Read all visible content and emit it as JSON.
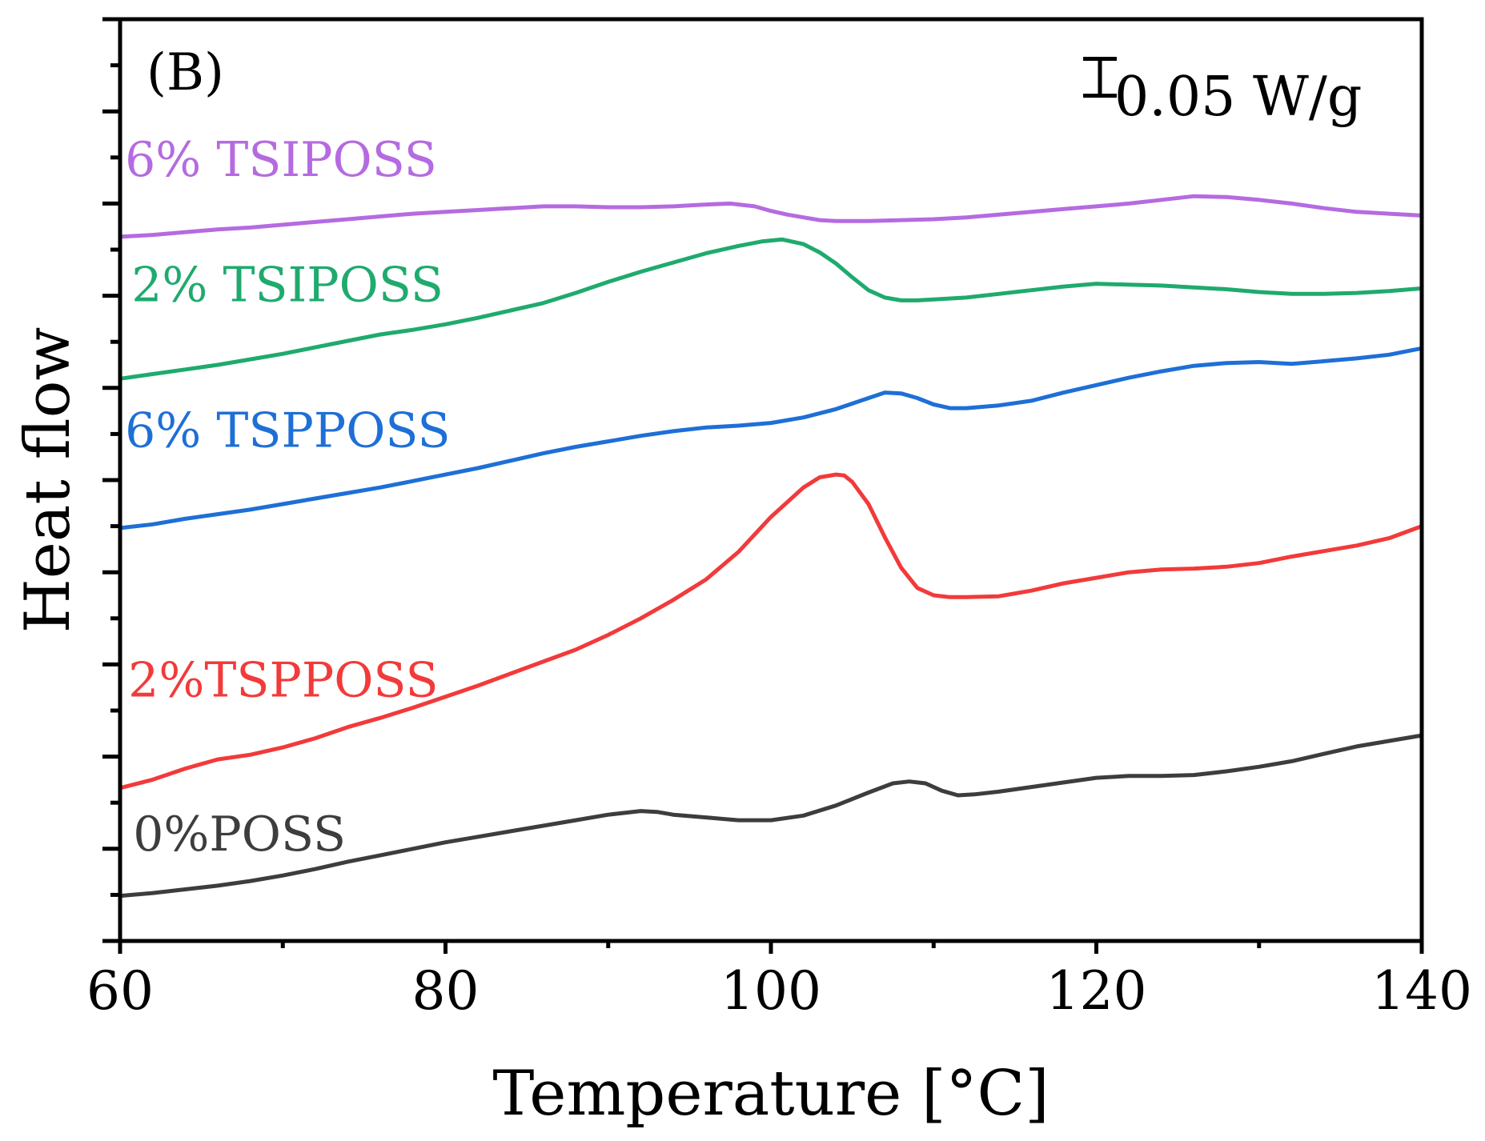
{
  "chart_data": {
    "type": "line",
    "panel_label": "(B)",
    "title": "",
    "xlabel": "Temperature [°C]",
    "ylabel": "Heat flow",
    "xlim": [
      60,
      140
    ],
    "ylim": [
      0,
      10
    ],
    "x_ticks": [
      60,
      80,
      100,
      120,
      140
    ],
    "x_tick_labels": [
      "60",
      "80",
      "100",
      "120",
      "140"
    ],
    "x_minor_step": 10,
    "y_tick_step": 1,
    "y_minor_step": 0.5,
    "y_tick_labels_shown": false,
    "scale_bar": {
      "label": "0.05 W/g",
      "size_y": 0.4
    },
    "series": [
      {
        "name": "6% TSIPOSS",
        "color": "#b56be0",
        "label_pos": [
          60.3,
          8.3
        ],
        "x": [
          60,
          62,
          64,
          66,
          68,
          70,
          72,
          74,
          76,
          78,
          80,
          82,
          84,
          86,
          88,
          90,
          92,
          94,
          96,
          97.5,
          99,
          100,
          101,
          102,
          103,
          104,
          106,
          108,
          110,
          112,
          114,
          116,
          118,
          120,
          122,
          124,
          126,
          128,
          130,
          132,
          134,
          136,
          138,
          140
        ],
        "y": [
          7.64,
          7.66,
          7.69,
          7.72,
          7.74,
          7.77,
          7.8,
          7.83,
          7.86,
          7.89,
          7.91,
          7.93,
          7.95,
          7.97,
          7.97,
          7.96,
          7.96,
          7.97,
          7.99,
          8.0,
          7.97,
          7.92,
          7.88,
          7.85,
          7.82,
          7.81,
          7.81,
          7.82,
          7.83,
          7.85,
          7.88,
          7.91,
          7.94,
          7.97,
          8.0,
          8.04,
          8.08,
          8.07,
          8.04,
          8.0,
          7.95,
          7.91,
          7.89,
          7.87
        ]
      },
      {
        "name": "2% TSIPOSS",
        "color": "#1faa6e",
        "label_pos": [
          60.7,
          6.94
        ],
        "x": [
          60,
          62,
          64,
          66,
          68,
          70,
          72,
          74,
          76,
          78,
          80,
          82,
          84,
          86,
          88,
          90,
          92,
          94,
          96,
          98,
          99.5,
          100.7,
          102,
          103,
          104,
          105,
          106,
          107,
          108,
          109,
          110,
          112,
          114,
          116,
          118,
          120,
          122,
          124,
          126,
          128,
          130,
          132,
          134,
          136,
          138,
          140
        ],
        "y": [
          6.1,
          6.15,
          6.2,
          6.25,
          6.31,
          6.37,
          6.44,
          6.51,
          6.58,
          6.63,
          6.69,
          6.76,
          6.84,
          6.92,
          7.03,
          7.15,
          7.26,
          7.36,
          7.46,
          7.54,
          7.59,
          7.61,
          7.56,
          7.47,
          7.35,
          7.2,
          7.06,
          6.98,
          6.95,
          6.95,
          6.96,
          6.98,
          7.02,
          7.06,
          7.1,
          7.13,
          7.12,
          7.11,
          7.09,
          7.07,
          7.04,
          7.02,
          7.02,
          7.03,
          7.05,
          7.08
        ]
      },
      {
        "name": "6% TSPPOSS",
        "color": "#1e6fd6",
        "label_pos": [
          60.3,
          5.36
        ],
        "x": [
          60,
          62,
          64,
          66,
          68,
          70,
          72,
          74,
          76,
          78,
          80,
          82,
          84,
          86,
          88,
          90,
          92,
          94,
          96,
          98,
          100,
          102,
          104,
          106,
          107,
          108,
          109,
          110,
          111,
          112,
          114,
          116,
          118,
          120,
          122,
          124,
          126,
          128,
          130,
          132,
          134,
          136,
          138,
          140
        ],
        "y": [
          4.48,
          4.52,
          4.58,
          4.63,
          4.68,
          4.74,
          4.8,
          4.86,
          4.92,
          4.99,
          5.06,
          5.13,
          5.21,
          5.29,
          5.36,
          5.42,
          5.48,
          5.53,
          5.57,
          5.59,
          5.62,
          5.68,
          5.77,
          5.89,
          5.95,
          5.94,
          5.89,
          5.82,
          5.78,
          5.78,
          5.81,
          5.86,
          5.95,
          6.03,
          6.11,
          6.18,
          6.24,
          6.27,
          6.28,
          6.26,
          6.29,
          6.32,
          6.36,
          6.43
        ]
      },
      {
        "name": "2%TSPPOSS",
        "color": "#f23a3a",
        "label_pos": [
          60.5,
          2.65
        ],
        "x": [
          60,
          62,
          64,
          66,
          68,
          70,
          72,
          74,
          76,
          78,
          80,
          82,
          84,
          86,
          88,
          90,
          92,
          94,
          96,
          98,
          100,
          102,
          103,
          104,
          104.5,
          105,
          106,
          107,
          108,
          109,
          110,
          111,
          112,
          114,
          116,
          118,
          120,
          122,
          124,
          126,
          128,
          130,
          132,
          134,
          136,
          138,
          140
        ],
        "y": [
          1.66,
          1.75,
          1.87,
          1.97,
          2.02,
          2.1,
          2.2,
          2.32,
          2.42,
          2.53,
          2.65,
          2.77,
          2.9,
          3.03,
          3.16,
          3.32,
          3.5,
          3.7,
          3.92,
          4.22,
          4.6,
          4.92,
          5.03,
          5.06,
          5.05,
          4.98,
          4.74,
          4.38,
          4.05,
          3.83,
          3.75,
          3.73,
          3.73,
          3.74,
          3.8,
          3.88,
          3.94,
          4.0,
          4.03,
          4.04,
          4.06,
          4.1,
          4.17,
          4.23,
          4.29,
          4.37,
          4.5
        ]
      },
      {
        "name": "0%POSS",
        "color": "#3d3d3d",
        "label_pos": [
          60.8,
          0.98
        ],
        "x": [
          60,
          62,
          64,
          66,
          68,
          70,
          72,
          74,
          76,
          78,
          80,
          82,
          84,
          86,
          88,
          90,
          92,
          93,
          94,
          96,
          98,
          100,
          102,
          104,
          106,
          107.5,
          108.5,
          109.5,
          110.5,
          111.5,
          112.5,
          114,
          116,
          118,
          120,
          122,
          124,
          126,
          128,
          130,
          132,
          134,
          136,
          138,
          140
        ],
        "y": [
          0.49,
          0.52,
          0.56,
          0.6,
          0.65,
          0.71,
          0.78,
          0.86,
          0.93,
          1.0,
          1.07,
          1.13,
          1.19,
          1.25,
          1.31,
          1.37,
          1.41,
          1.4,
          1.37,
          1.34,
          1.31,
          1.31,
          1.36,
          1.47,
          1.61,
          1.71,
          1.73,
          1.71,
          1.63,
          1.58,
          1.59,
          1.62,
          1.67,
          1.72,
          1.77,
          1.79,
          1.79,
          1.8,
          1.84,
          1.89,
          1.95,
          2.03,
          2.11,
          2.17,
          2.23
        ]
      }
    ]
  }
}
